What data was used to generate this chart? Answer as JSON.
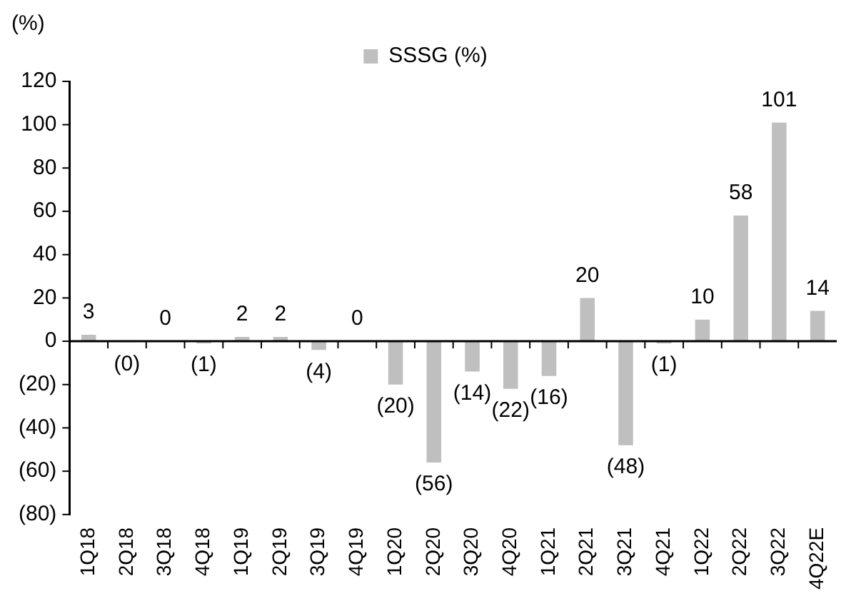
{
  "chart_data": {
    "type": "bar",
    "ylabel": "(%)",
    "categories": [
      "1Q18",
      "2Q18",
      "3Q18",
      "4Q18",
      "1Q19",
      "2Q19",
      "3Q19",
      "4Q19",
      "1Q20",
      "2Q20",
      "3Q20",
      "4Q20",
      "1Q21",
      "2Q21",
      "3Q21",
      "4Q21",
      "1Q22",
      "2Q22",
      "3Q22",
      "4Q22E"
    ],
    "series": [
      {
        "name": "SSSG (%)",
        "color": "#bfbfbf",
        "values": [
          3,
          -0.4,
          0,
          -1,
          2,
          2,
          -4,
          0,
          -20,
          -56,
          -14,
          -22,
          -16,
          20,
          -48,
          -1,
          10,
          58,
          101,
          14
        ],
        "value_labels": [
          "3",
          "(0)",
          "0",
          "(1)",
          "2",
          "2",
          "(4)",
          "0",
          "(20)",
          "(56)",
          "(14)",
          "(22)",
          "(16)",
          "20",
          "(48)",
          "(1)",
          "10",
          "58",
          "101",
          "14"
        ]
      }
    ],
    "ylim": [
      -80,
      120
    ],
    "yticks": [
      {
        "value": -80,
        "label": "(80)"
      },
      {
        "value": -60,
        "label": "(60)"
      },
      {
        "value": -40,
        "label": "(40)"
      },
      {
        "value": -20,
        "label": "(20)"
      },
      0,
      20,
      40,
      60,
      80,
      100,
      120
    ],
    "legend": "top"
  }
}
